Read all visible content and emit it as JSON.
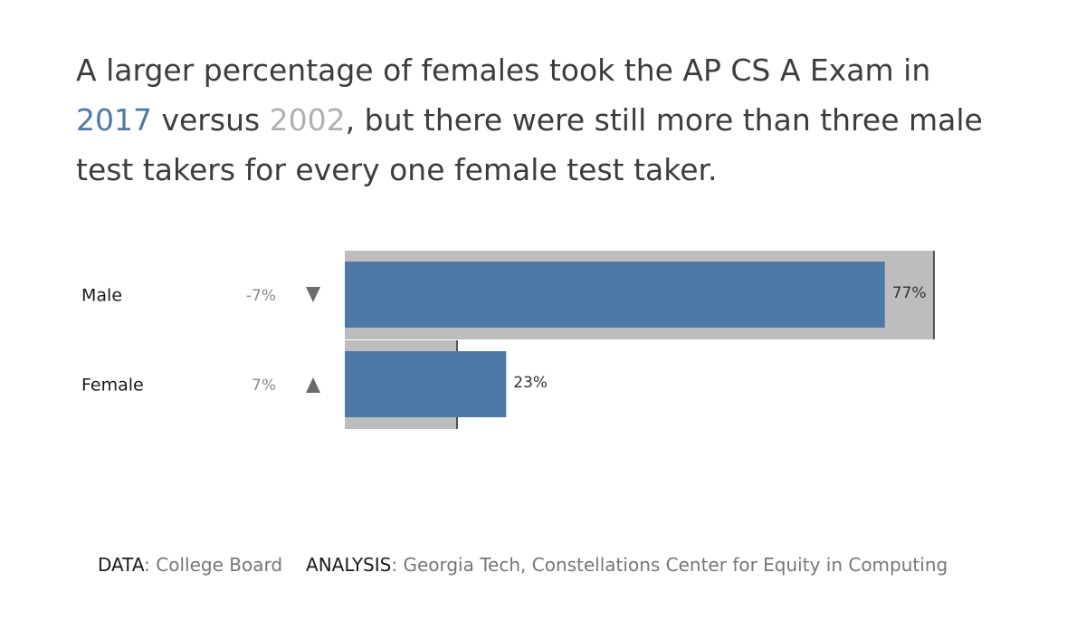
{
  "title": {
    "part1": "A larger percentage of females took the AP CS A Exam in",
    "year_current": "2017",
    "part2": " versus ",
    "year_prior": "2002",
    "part3": ", but there were still more than three male test takers for every one female test taker."
  },
  "colors": {
    "current_bar": "#4e79a7",
    "prior_bar": "#bdbdbd",
    "reference_line": "#555555",
    "arrow": "#6b6b6b"
  },
  "chart_data": {
    "type": "bar",
    "orientation": "horizontal",
    "categories": [
      "Male",
      "Female"
    ],
    "series": [
      {
        "name": "2017",
        "values": [
          77,
          23
        ]
      },
      {
        "name": "2002",
        "values": [
          84,
          16
        ]
      }
    ],
    "value_labels": [
      "77%",
      "23%"
    ],
    "change_labels": [
      "-7%",
      "7%"
    ],
    "change_direction": [
      "down",
      "up"
    ],
    "xlim": [
      0,
      100
    ],
    "grid": false
  },
  "footer": {
    "data_key": "DATA",
    "data_value": ": College Board",
    "analysis_key": "ANALYSIS",
    "analysis_value": ": Georgia Tech, Constellations Center for Equity in Computing"
  }
}
